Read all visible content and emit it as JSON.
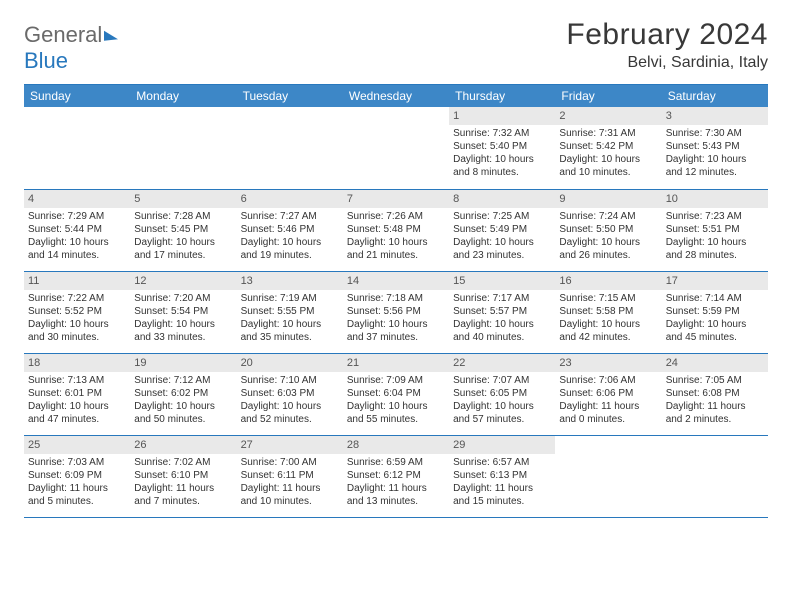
{
  "brand": {
    "part1": "General",
    "part2": "Blue"
  },
  "title": "February 2024",
  "location": "Belvi, Sardinia, Italy",
  "colors": {
    "header_bg": "#3d87c7",
    "border": "#2878bd",
    "band_bg": "#e9e9e9",
    "text": "#333333",
    "title_text": "#383838"
  },
  "day_names": [
    "Sunday",
    "Monday",
    "Tuesday",
    "Wednesday",
    "Thursday",
    "Friday",
    "Saturday"
  ],
  "weeks": [
    [
      null,
      null,
      null,
      null,
      {
        "n": "1",
        "sr": "Sunrise: 7:32 AM",
        "ss": "Sunset: 5:40 PM",
        "dl": "Daylight: 10 hours and 8 minutes."
      },
      {
        "n": "2",
        "sr": "Sunrise: 7:31 AM",
        "ss": "Sunset: 5:42 PM",
        "dl": "Daylight: 10 hours and 10 minutes."
      },
      {
        "n": "3",
        "sr": "Sunrise: 7:30 AM",
        "ss": "Sunset: 5:43 PM",
        "dl": "Daylight: 10 hours and 12 minutes."
      }
    ],
    [
      {
        "n": "4",
        "sr": "Sunrise: 7:29 AM",
        "ss": "Sunset: 5:44 PM",
        "dl": "Daylight: 10 hours and 14 minutes."
      },
      {
        "n": "5",
        "sr": "Sunrise: 7:28 AM",
        "ss": "Sunset: 5:45 PM",
        "dl": "Daylight: 10 hours and 17 minutes."
      },
      {
        "n": "6",
        "sr": "Sunrise: 7:27 AM",
        "ss": "Sunset: 5:46 PM",
        "dl": "Daylight: 10 hours and 19 minutes."
      },
      {
        "n": "7",
        "sr": "Sunrise: 7:26 AM",
        "ss": "Sunset: 5:48 PM",
        "dl": "Daylight: 10 hours and 21 minutes."
      },
      {
        "n": "8",
        "sr": "Sunrise: 7:25 AM",
        "ss": "Sunset: 5:49 PM",
        "dl": "Daylight: 10 hours and 23 minutes."
      },
      {
        "n": "9",
        "sr": "Sunrise: 7:24 AM",
        "ss": "Sunset: 5:50 PM",
        "dl": "Daylight: 10 hours and 26 minutes."
      },
      {
        "n": "10",
        "sr": "Sunrise: 7:23 AM",
        "ss": "Sunset: 5:51 PM",
        "dl": "Daylight: 10 hours and 28 minutes."
      }
    ],
    [
      {
        "n": "11",
        "sr": "Sunrise: 7:22 AM",
        "ss": "Sunset: 5:52 PM",
        "dl": "Daylight: 10 hours and 30 minutes."
      },
      {
        "n": "12",
        "sr": "Sunrise: 7:20 AM",
        "ss": "Sunset: 5:54 PM",
        "dl": "Daylight: 10 hours and 33 minutes."
      },
      {
        "n": "13",
        "sr": "Sunrise: 7:19 AM",
        "ss": "Sunset: 5:55 PM",
        "dl": "Daylight: 10 hours and 35 minutes."
      },
      {
        "n": "14",
        "sr": "Sunrise: 7:18 AM",
        "ss": "Sunset: 5:56 PM",
        "dl": "Daylight: 10 hours and 37 minutes."
      },
      {
        "n": "15",
        "sr": "Sunrise: 7:17 AM",
        "ss": "Sunset: 5:57 PM",
        "dl": "Daylight: 10 hours and 40 minutes."
      },
      {
        "n": "16",
        "sr": "Sunrise: 7:15 AM",
        "ss": "Sunset: 5:58 PM",
        "dl": "Daylight: 10 hours and 42 minutes."
      },
      {
        "n": "17",
        "sr": "Sunrise: 7:14 AM",
        "ss": "Sunset: 5:59 PM",
        "dl": "Daylight: 10 hours and 45 minutes."
      }
    ],
    [
      {
        "n": "18",
        "sr": "Sunrise: 7:13 AM",
        "ss": "Sunset: 6:01 PM",
        "dl": "Daylight: 10 hours and 47 minutes."
      },
      {
        "n": "19",
        "sr": "Sunrise: 7:12 AM",
        "ss": "Sunset: 6:02 PM",
        "dl": "Daylight: 10 hours and 50 minutes."
      },
      {
        "n": "20",
        "sr": "Sunrise: 7:10 AM",
        "ss": "Sunset: 6:03 PM",
        "dl": "Daylight: 10 hours and 52 minutes."
      },
      {
        "n": "21",
        "sr": "Sunrise: 7:09 AM",
        "ss": "Sunset: 6:04 PM",
        "dl": "Daylight: 10 hours and 55 minutes."
      },
      {
        "n": "22",
        "sr": "Sunrise: 7:07 AM",
        "ss": "Sunset: 6:05 PM",
        "dl": "Daylight: 10 hours and 57 minutes."
      },
      {
        "n": "23",
        "sr": "Sunrise: 7:06 AM",
        "ss": "Sunset: 6:06 PM",
        "dl": "Daylight: 11 hours and 0 minutes."
      },
      {
        "n": "24",
        "sr": "Sunrise: 7:05 AM",
        "ss": "Sunset: 6:08 PM",
        "dl": "Daylight: 11 hours and 2 minutes."
      }
    ],
    [
      {
        "n": "25",
        "sr": "Sunrise: 7:03 AM",
        "ss": "Sunset: 6:09 PM",
        "dl": "Daylight: 11 hours and 5 minutes."
      },
      {
        "n": "26",
        "sr": "Sunrise: 7:02 AM",
        "ss": "Sunset: 6:10 PM",
        "dl": "Daylight: 11 hours and 7 minutes."
      },
      {
        "n": "27",
        "sr": "Sunrise: 7:00 AM",
        "ss": "Sunset: 6:11 PM",
        "dl": "Daylight: 11 hours and 10 minutes."
      },
      {
        "n": "28",
        "sr": "Sunrise: 6:59 AM",
        "ss": "Sunset: 6:12 PM",
        "dl": "Daylight: 11 hours and 13 minutes."
      },
      {
        "n": "29",
        "sr": "Sunrise: 6:57 AM",
        "ss": "Sunset: 6:13 PM",
        "dl": "Daylight: 11 hours and 15 minutes."
      },
      null,
      null
    ]
  ]
}
